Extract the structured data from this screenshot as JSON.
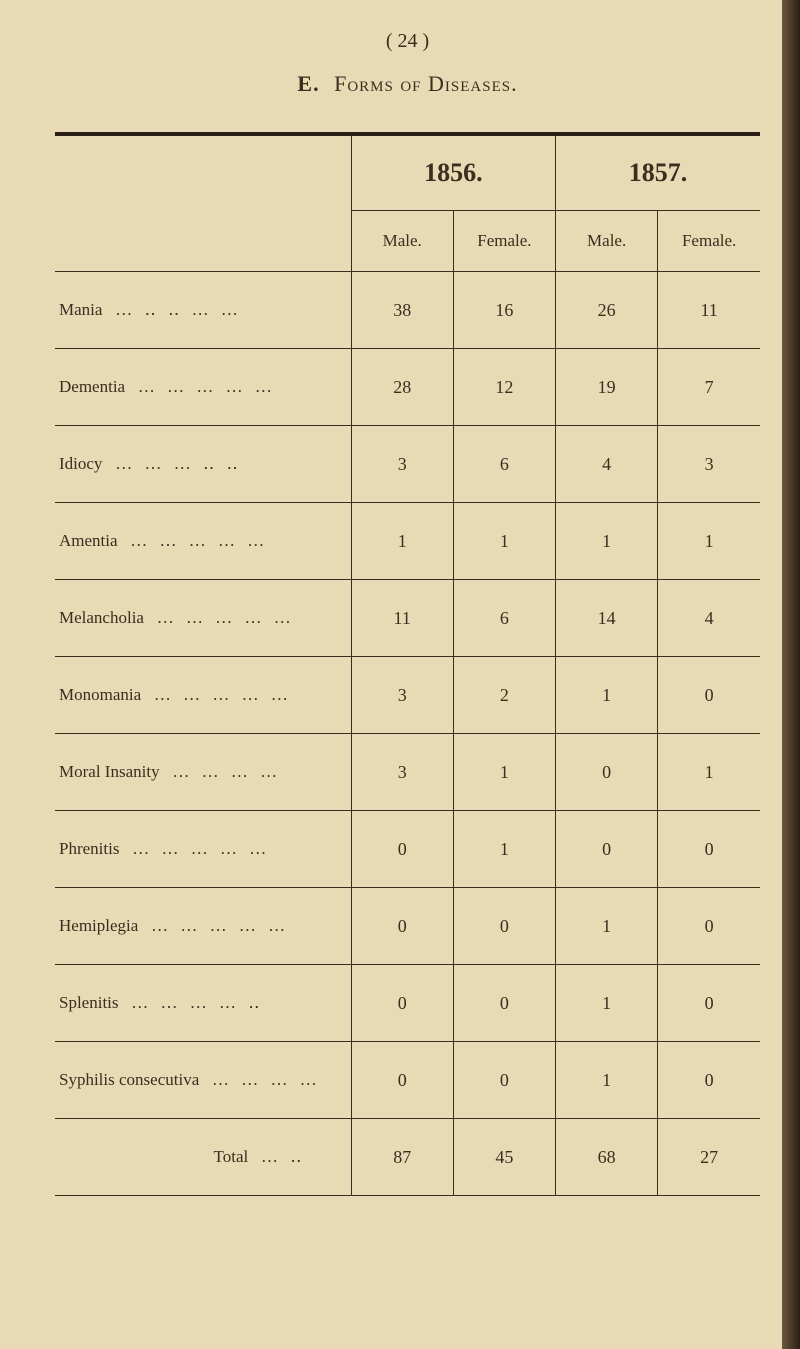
{
  "page": {
    "number": "( 24 )",
    "section_letter": "E.",
    "title": "Forms of Diseases."
  },
  "table": {
    "year_1": "1856.",
    "year_2": "1857.",
    "col_male": "Male.",
    "col_female": "Female.",
    "rows": [
      {
        "label": "Mania",
        "dots": "… ‥ ‥ … …",
        "v1856m": "38",
        "v1856f": "16",
        "v1857m": "26",
        "v1857f": "11"
      },
      {
        "label": "Dementia",
        "dots": "… … … … …",
        "v1856m": "28",
        "v1856f": "12",
        "v1857m": "19",
        "v1857f": "7"
      },
      {
        "label": "Idiocy",
        "dots": "… … … ‥ ‥",
        "v1856m": "3",
        "v1856f": "6",
        "v1857m": "4",
        "v1857f": "3"
      },
      {
        "label": "Amentia",
        "dots": "… … … … …",
        "v1856m": "1",
        "v1856f": "1",
        "v1857m": "1",
        "v1857f": "1"
      },
      {
        "label": "Melancholia",
        "dots": "… … … … …",
        "v1856m": "11",
        "v1856f": "6",
        "v1857m": "14",
        "v1857f": "4"
      },
      {
        "label": "Monomania",
        "dots": "… … … … …",
        "v1856m": "3",
        "v1856f": "2",
        "v1857m": "1",
        "v1857f": "0"
      },
      {
        "label": "Moral Insanity",
        "dots": "… … … …",
        "v1856m": "3",
        "v1856f": "1",
        "v1857m": "0",
        "v1857f": "1"
      },
      {
        "label": "Phrenitis",
        "dots": "… … … … …",
        "v1856m": "0",
        "v1856f": "1",
        "v1857m": "0",
        "v1857f": "0"
      },
      {
        "label": "Hemiplegia",
        "dots": "… … … … …",
        "v1856m": "0",
        "v1856f": "0",
        "v1857m": "1",
        "v1857f": "0"
      },
      {
        "label": "Splenitis",
        "dots": "… … … … ‥",
        "v1856m": "0",
        "v1856f": "0",
        "v1857m": "1",
        "v1857f": "0"
      },
      {
        "label": "Syphilis consecutiva",
        "dots": "… … … …",
        "v1856m": "0",
        "v1856f": "0",
        "v1857m": "1",
        "v1857f": "0"
      }
    ],
    "total": {
      "label": "Total",
      "dots": "… ‥",
      "v1856m": "87",
      "v1856f": "45",
      "v1857m": "68",
      "v1857f": "27"
    }
  },
  "colors": {
    "background": "#e8dab5",
    "text": "#3a2e1f",
    "border": "#3a2e1f"
  }
}
